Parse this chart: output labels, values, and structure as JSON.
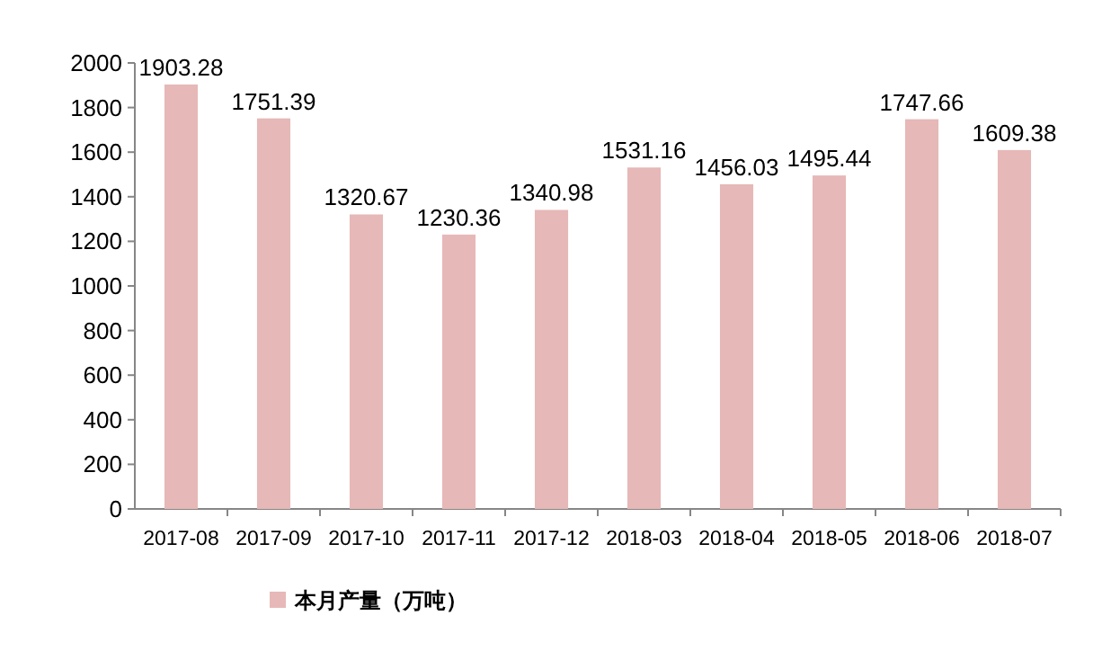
{
  "chart_data": {
    "type": "bar",
    "categories": [
      "2017-08",
      "2017-09",
      "2017-10",
      "2017-11",
      "2017-12",
      "2018-03",
      "2018-04",
      "2018-05",
      "2018-06",
      "2018-07"
    ],
    "series": [
      {
        "name": "本月产量（万吨）",
        "color": "#e6b8b7",
        "values": [
          1903.28,
          1751.39,
          1320.67,
          1230.36,
          1340.98,
          1531.16,
          1456.03,
          1495.44,
          1747.66,
          1609.38
        ]
      }
    ],
    "ylim": [
      0,
      2000
    ],
    "yticks": [
      0,
      200,
      400,
      600,
      800,
      1000,
      1200,
      1400,
      1600,
      1800,
      2000
    ],
    "data_labels": true,
    "legend": "bottom",
    "grid": false
  }
}
